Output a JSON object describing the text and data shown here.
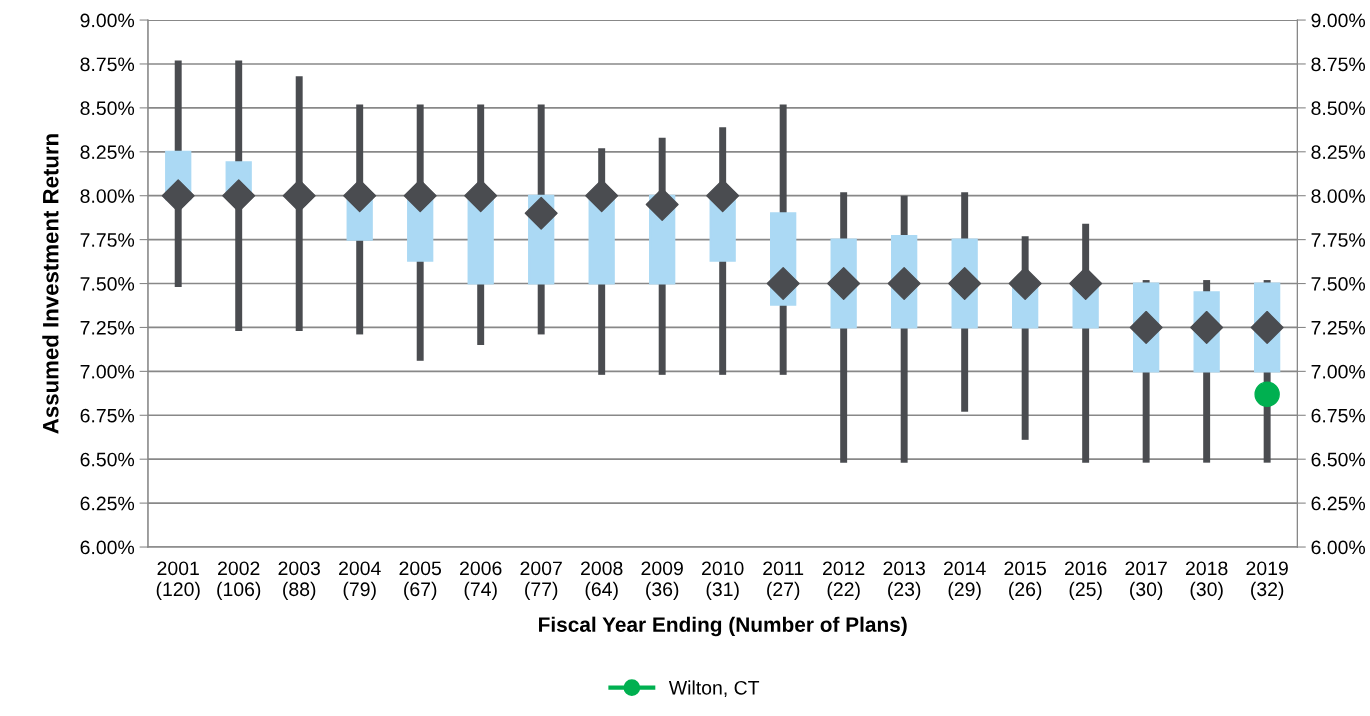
{
  "chart_data": {
    "type": "box",
    "xlabel": "Fiscal Year Ending (Number of Plans)",
    "ylabel": "Assumed Investment Return",
    "categories": [
      "2001\n(120)",
      "2002\n(106)",
      "2003\n(88)",
      "2004\n(79)",
      "2005\n(67)",
      "2006\n(74)",
      "2007\n(77)",
      "2008\n(64)",
      "2009\n(36)",
      "2010\n(31)",
      "2011\n(27)",
      "2012\n(22)",
      "2013\n(23)",
      "2014\n(29)",
      "2015\n(26)",
      "2016\n(25)",
      "2017\n(30)",
      "2018\n(30)",
      "2019\n(32)"
    ],
    "series": [
      {
        "type": "box",
        "color": "#abd9f4",
        "boxes": [
          {
            "low": 7.5,
            "q1": 7.98,
            "median": 8.0,
            "q3": 8.25,
            "high": 8.75
          },
          {
            "low": 7.25,
            "q1": 8.0,
            "median": 8.0,
            "q3": 8.19,
            "high": 8.75
          },
          {
            "low": 7.25,
            "q1": 8.0,
            "median": 8.0,
            "q3": 8.0,
            "high": 8.66
          },
          {
            "low": 7.23,
            "q1": 7.75,
            "median": 8.0,
            "q3": 8.0,
            "high": 8.5
          },
          {
            "low": 7.08,
            "q1": 7.63,
            "median": 8.0,
            "q3": 8.0,
            "high": 8.5
          },
          {
            "low": 7.17,
            "q1": 7.5,
            "median": 8.0,
            "q3": 8.0,
            "high": 8.5
          },
          {
            "low": 7.23,
            "q1": 7.5,
            "median": 7.9,
            "q3": 8.0,
            "high": 8.5
          },
          {
            "low": 7.0,
            "q1": 7.5,
            "median": 8.0,
            "q3": 8.0,
            "high": 8.25
          },
          {
            "low": 7.0,
            "q1": 7.5,
            "median": 7.95,
            "q3": 8.0,
            "high": 8.31
          },
          {
            "low": 7.0,
            "q1": 7.63,
            "median": 8.0,
            "q3": 8.0,
            "high": 8.37
          },
          {
            "low": 7.0,
            "q1": 7.38,
            "median": 7.5,
            "q3": 7.9,
            "high": 8.5
          },
          {
            "low": 6.5,
            "q1": 7.25,
            "median": 7.5,
            "q3": 7.75,
            "high": 8.0
          },
          {
            "low": 6.5,
            "q1": 7.25,
            "median": 7.5,
            "q3": 7.77,
            "high": 7.98
          },
          {
            "low": 6.79,
            "q1": 7.25,
            "median": 7.5,
            "q3": 7.75,
            "high": 8.0
          },
          {
            "low": 6.63,
            "q1": 7.25,
            "median": 7.5,
            "q3": 7.5,
            "high": 7.75
          },
          {
            "low": 6.5,
            "q1": 7.25,
            "median": 7.5,
            "q3": 7.5,
            "high": 7.82
          },
          {
            "low": 6.5,
            "q1": 7.0,
            "median": 7.25,
            "q3": 7.5,
            "high": 7.5
          },
          {
            "low": 6.5,
            "q1": 7.0,
            "median": 7.25,
            "q3": 7.45,
            "high": 7.5
          },
          {
            "low": 6.5,
            "q1": 7.0,
            "median": 7.25,
            "q3": 7.5,
            "high": 7.5
          }
        ]
      },
      {
        "type": "scatter",
        "color": "#4a4c50",
        "marker": "diamond",
        "x": [
          "2001\n(120)",
          "2002\n(106)",
          "2003\n(88)",
          "2004\n(79)",
          "2005\n(67)",
          "2006\n(74)",
          "2007\n(77)",
          "2008\n(64)",
          "2009\n(36)",
          "2010\n(31)",
          "2011\n(27)",
          "2012\n(22)",
          "2013\n(23)",
          "2014\n(29)",
          "2015\n(26)",
          "2016\n(25)",
          "2017\n(30)",
          "2018\n(30)",
          "2019\n(32)"
        ],
        "values": [
          8.0,
          8.0,
          8.0,
          8.0,
          8.0,
          8.0,
          7.9,
          8.0,
          7.95,
          8.0,
          7.5,
          7.5,
          7.5,
          7.5,
          7.5,
          7.5,
          7.25,
          7.25,
          7.25
        ]
      },
      {
        "type": "scatter",
        "name": "Wilton, CT",
        "color": "#00b050",
        "marker": "circle",
        "x": [
          "2019\n(32)"
        ],
        "values": [
          6.87
        ]
      }
    ],
    "ylim": [
      6.0,
      9.0
    ],
    "yticks": [
      {
        "value": 6.0,
        "label": "6.00%"
      },
      {
        "value": 6.25,
        "label": "6.25%"
      },
      {
        "value": 6.5,
        "label": "6.50%"
      },
      {
        "value": 6.75,
        "label": "6.75%"
      },
      {
        "value": 7.0,
        "label": "7.00%"
      },
      {
        "value": 7.25,
        "label": "7.25%"
      },
      {
        "value": 7.5,
        "label": "7.50%"
      },
      {
        "value": 7.75,
        "label": "7.75%"
      },
      {
        "value": 8.0,
        "label": "8.00%"
      },
      {
        "value": 8.25,
        "label": "8.25%"
      },
      {
        "value": 8.5,
        "label": "8.50%"
      },
      {
        "value": 8.75,
        "label": "8.75%"
      },
      {
        "value": 9.0,
        "label": "9.00%"
      }
    ],
    "y2lim": [
      6.0,
      9.0
    ],
    "y2ticks": [
      {
        "value": 6.0,
        "label": "6.00%"
      },
      {
        "value": 6.25,
        "label": "6.25%"
      },
      {
        "value": 6.5,
        "label": "6.50%"
      },
      {
        "value": 6.75,
        "label": "6.75%"
      },
      {
        "value": 7.0,
        "label": "7.00%"
      },
      {
        "value": 7.25,
        "label": "7.25%"
      },
      {
        "value": 7.5,
        "label": "7.50%"
      },
      {
        "value": 7.75,
        "label": "7.75%"
      },
      {
        "value": 8.0,
        "label": "8.00%"
      },
      {
        "value": 8.25,
        "label": "8.25%"
      },
      {
        "value": 8.5,
        "label": "8.50%"
      },
      {
        "value": 8.75,
        "label": "8.75%"
      },
      {
        "value": 9.0,
        "label": "9.00%"
      }
    ],
    "grid": "y",
    "legend": "bottom"
  }
}
